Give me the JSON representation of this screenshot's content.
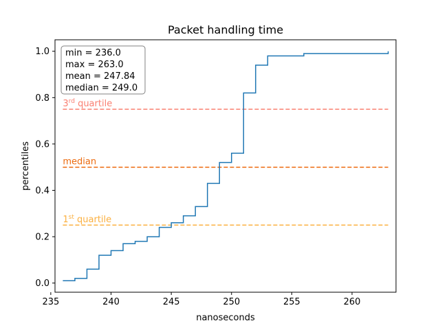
{
  "chart_data": {
    "type": "line",
    "title": "Packet handling time",
    "xlabel": "nanoseconds",
    "ylabel": "percentiles",
    "xlim": [
      235.35,
      263.65
    ],
    "ylim": [
      -0.0395,
      1.0495
    ],
    "xticks": [
      235,
      240,
      245,
      250,
      255,
      260
    ],
    "yticks": [
      0.0,
      0.2,
      0.4,
      0.6,
      0.8,
      1.0
    ],
    "xtick_labels": [
      "235",
      "240",
      "245",
      "250",
      "255",
      "260"
    ],
    "ytick_labels": [
      "0.0",
      "0.2",
      "0.4",
      "0.6",
      "0.8",
      "1.0"
    ],
    "grid": false,
    "series": [
      {
        "type": "step",
        "color": "#1f77b4",
        "x": [
          236,
          237,
          238,
          239,
          240,
          241,
          242,
          243,
          244,
          245,
          246,
          247,
          248,
          249,
          250,
          251,
          252,
          253,
          256,
          263
        ],
        "y": [
          0.01,
          0.02,
          0.06,
          0.12,
          0.14,
          0.17,
          0.18,
          0.2,
          0.24,
          0.26,
          0.29,
          0.33,
          0.43,
          0.52,
          0.56,
          0.82,
          0.94,
          0.98,
          0.99,
          1.0
        ]
      }
    ],
    "hlines": [
      {
        "y": 0.75,
        "xmin": 236,
        "xmax": 263,
        "color": "#fa8072",
        "label_main": "3",
        "label_sup": "rd",
        "label_rest": " quartile"
      },
      {
        "y": 0.5,
        "xmin": 236,
        "xmax": 263,
        "color": "#ec6a0e",
        "label_main": "median",
        "label_sup": "",
        "label_rest": ""
      },
      {
        "y": 0.25,
        "xmin": 236,
        "xmax": 263,
        "color": "#fbb040",
        "label_main": "1",
        "label_sup": "st",
        "label_rest": " quartile"
      }
    ],
    "stats_box": {
      "placement": "top-left",
      "lines": [
        "min = 236.0",
        "max = 263.0",
        "mean = 247.84",
        "median = 249.0"
      ]
    }
  }
}
